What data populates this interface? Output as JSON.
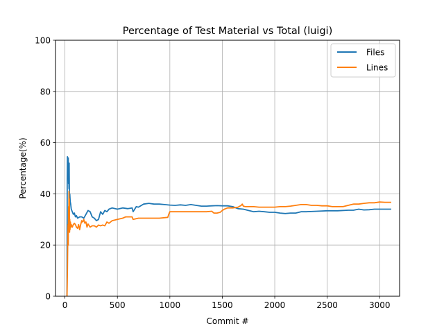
{
  "chart_data": {
    "type": "line",
    "title": "Percentage of Test Material vs Total (luigi)",
    "xlabel": "Commit #",
    "ylabel": "Percentage(%)",
    "xlim": [
      -90,
      3190
    ],
    "ylim": [
      0,
      100
    ],
    "xticks": [
      0,
      500,
      1000,
      1500,
      2000,
      2500,
      3000
    ],
    "yticks": [
      0,
      20,
      40,
      60,
      80,
      100
    ],
    "grid": true,
    "legend_position": "top-right",
    "series": [
      {
        "name": "Files",
        "color": "#1f77b4",
        "points": [
          [
            20,
            0
          ],
          [
            22,
            45
          ],
          [
            24,
            54.5
          ],
          [
            26,
            50
          ],
          [
            28,
            53
          ],
          [
            30,
            47
          ],
          [
            32,
            54
          ],
          [
            34,
            44
          ],
          [
            36,
            50
          ],
          [
            38,
            42
          ],
          [
            40,
            52
          ],
          [
            42,
            41
          ],
          [
            44,
            38
          ],
          [
            46,
            40
          ],
          [
            50,
            37
          ],
          [
            55,
            36
          ],
          [
            60,
            34
          ],
          [
            70,
            33
          ],
          [
            80,
            32
          ],
          [
            90,
            32.5
          ],
          [
            100,
            31
          ],
          [
            110,
            31.5
          ],
          [
            120,
            30.5
          ],
          [
            140,
            31
          ],
          [
            160,
            31
          ],
          [
            180,
            30.5
          ],
          [
            200,
            32
          ],
          [
            220,
            33.5
          ],
          [
            240,
            33
          ],
          [
            260,
            31
          ],
          [
            280,
            30.5
          ],
          [
            300,
            29.5
          ],
          [
            320,
            30
          ],
          [
            340,
            33
          ],
          [
            360,
            32
          ],
          [
            380,
            33.5
          ],
          [
            400,
            33
          ],
          [
            420,
            34
          ],
          [
            450,
            34.5
          ],
          [
            500,
            34
          ],
          [
            550,
            34.5
          ],
          [
            600,
            34.2
          ],
          [
            640,
            34.5
          ],
          [
            650,
            33
          ],
          [
            680,
            35
          ],
          [
            700,
            34.8
          ],
          [
            750,
            36
          ],
          [
            800,
            36.3
          ],
          [
            850,
            36
          ],
          [
            900,
            36
          ],
          [
            950,
            35.8
          ],
          [
            1000,
            35.6
          ],
          [
            1050,
            35.5
          ],
          [
            1100,
            35.7
          ],
          [
            1150,
            35.5
          ],
          [
            1200,
            35.8
          ],
          [
            1250,
            35.5
          ],
          [
            1300,
            35.2
          ],
          [
            1350,
            35.2
          ],
          [
            1400,
            35.3
          ],
          [
            1450,
            35.4
          ],
          [
            1500,
            35.3
          ],
          [
            1550,
            35.3
          ],
          [
            1600,
            35
          ],
          [
            1650,
            34.2
          ],
          [
            1700,
            34
          ],
          [
            1750,
            33.5
          ],
          [
            1800,
            33
          ],
          [
            1850,
            33.2
          ],
          [
            1900,
            33
          ],
          [
            1950,
            32.8
          ],
          [
            2000,
            32.8
          ],
          [
            2050,
            32.5
          ],
          [
            2100,
            32.3
          ],
          [
            2150,
            32.5
          ],
          [
            2200,
            32.5
          ],
          [
            2250,
            33
          ],
          [
            2300,
            33
          ],
          [
            2400,
            33.2
          ],
          [
            2500,
            33.4
          ],
          [
            2600,
            33.4
          ],
          [
            2700,
            33.6
          ],
          [
            2750,
            33.6
          ],
          [
            2800,
            34
          ],
          [
            2850,
            33.7
          ],
          [
            2900,
            33.8
          ],
          [
            2950,
            34
          ],
          [
            3000,
            34
          ],
          [
            3050,
            34
          ],
          [
            3110,
            34
          ]
        ]
      },
      {
        "name": "Lines",
        "color": "#ff7f0e",
        "points": [
          [
            20,
            0
          ],
          [
            24,
            10
          ],
          [
            27,
            22
          ],
          [
            30,
            28
          ],
          [
            32,
            20
          ],
          [
            34,
            35
          ],
          [
            36,
            30
          ],
          [
            38,
            41
          ],
          [
            40,
            33
          ],
          [
            42,
            38
          ],
          [
            44,
            25
          ],
          [
            46,
            30
          ],
          [
            48,
            26
          ],
          [
            52,
            29
          ],
          [
            56,
            27
          ],
          [
            60,
            28
          ],
          [
            70,
            27
          ],
          [
            80,
            28
          ],
          [
            90,
            28.5
          ],
          [
            100,
            28
          ],
          [
            110,
            27
          ],
          [
            120,
            26.5
          ],
          [
            130,
            28
          ],
          [
            140,
            26
          ],
          [
            150,
            28
          ],
          [
            160,
            29.5
          ],
          [
            170,
            29
          ],
          [
            180,
            30
          ],
          [
            190,
            28.5
          ],
          [
            200,
            29
          ],
          [
            210,
            27
          ],
          [
            220,
            28.2
          ],
          [
            240,
            27
          ],
          [
            260,
            27.5
          ],
          [
            280,
            27.5
          ],
          [
            300,
            27
          ],
          [
            320,
            27.8
          ],
          [
            340,
            27.5
          ],
          [
            360,
            27.8
          ],
          [
            380,
            27.5
          ],
          [
            400,
            29
          ],
          [
            420,
            28.5
          ],
          [
            450,
            29.5
          ],
          [
            500,
            30
          ],
          [
            550,
            30.5
          ],
          [
            580,
            31
          ],
          [
            620,
            31
          ],
          [
            640,
            31
          ],
          [
            650,
            30
          ],
          [
            700,
            30.5
          ],
          [
            800,
            30.5
          ],
          [
            900,
            30.5
          ],
          [
            980,
            30.8
          ],
          [
            990,
            32
          ],
          [
            1000,
            33
          ],
          [
            1050,
            33
          ],
          [
            1100,
            33
          ],
          [
            1200,
            33
          ],
          [
            1300,
            33
          ],
          [
            1350,
            33
          ],
          [
            1400,
            33.2
          ],
          [
            1420,
            32.5
          ],
          [
            1450,
            32.5
          ],
          [
            1480,
            32.8
          ],
          [
            1500,
            33.5
          ],
          [
            1520,
            34
          ],
          [
            1550,
            34.5
          ],
          [
            1600,
            34.5
          ],
          [
            1650,
            34.8
          ],
          [
            1680,
            35.5
          ],
          [
            1690,
            36
          ],
          [
            1700,
            35.2
          ],
          [
            1720,
            35
          ],
          [
            1800,
            35
          ],
          [
            1850,
            34.8
          ],
          [
            1900,
            34.8
          ],
          [
            1950,
            34.8
          ],
          [
            2000,
            34.8
          ],
          [
            2050,
            35
          ],
          [
            2100,
            35
          ],
          [
            2150,
            35.2
          ],
          [
            2200,
            35.5
          ],
          [
            2250,
            35.8
          ],
          [
            2300,
            35.8
          ],
          [
            2350,
            35.5
          ],
          [
            2400,
            35.5
          ],
          [
            2450,
            35.3
          ],
          [
            2500,
            35.3
          ],
          [
            2550,
            35
          ],
          [
            2600,
            35
          ],
          [
            2650,
            35
          ],
          [
            2700,
            35.5
          ],
          [
            2750,
            36
          ],
          [
            2800,
            36
          ],
          [
            2850,
            36.3
          ],
          [
            2900,
            36.5
          ],
          [
            2950,
            36.5
          ],
          [
            3000,
            36.8
          ],
          [
            3050,
            36.7
          ],
          [
            3110,
            36.7
          ]
        ]
      }
    ]
  }
}
